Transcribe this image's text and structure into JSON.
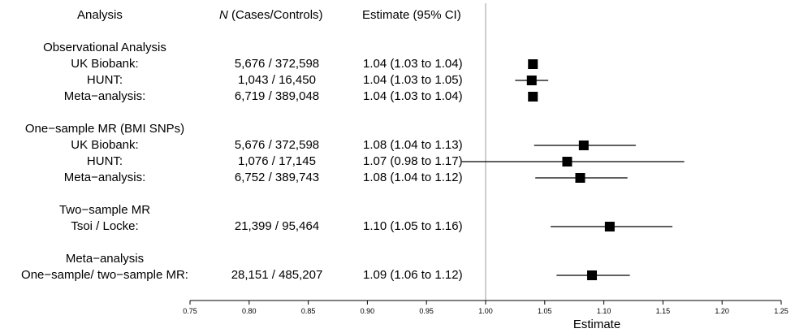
{
  "headers": {
    "analysis": "Analysis",
    "n_italic": "N",
    "n_rest": " (Cases/Controls)",
    "estimate": "Estimate (95% CI)"
  },
  "rows": [
    {
      "kind": "group",
      "label": "Observational Analysis"
    },
    {
      "kind": "item",
      "label": "UK Biobank:",
      "n": "5,676 / 372,598",
      "ci": "1.04 (1.03 to 1.04)"
    },
    {
      "kind": "item",
      "label": "HUNT:",
      "n": "1,043 / 16,450",
      "ci": "1.04 (1.03 to 1.05)"
    },
    {
      "kind": "item",
      "label": "Meta−analysis:",
      "n": "6,719 / 389,048",
      "ci": "1.04 (1.03 to 1.04)"
    },
    {
      "kind": "group",
      "label": "One−sample MR (BMI SNPs)"
    },
    {
      "kind": "item",
      "label": "UK Biobank:",
      "n": "5,676 / 372,598",
      "ci": "1.08 (1.04 to 1.13)"
    },
    {
      "kind": "item",
      "label": "HUNT:",
      "n": "1,076 / 17,145",
      "ci": "1.07 (0.98 to 1.17)"
    },
    {
      "kind": "item",
      "label": "Meta−analysis:",
      "n": "6,752 / 389,743",
      "ci": "1.08 (1.04 to 1.12)"
    },
    {
      "kind": "group",
      "label": "Two−sample MR"
    },
    {
      "kind": "item",
      "label": "Tsoi / Locke:",
      "n": "21,399 / 95,464",
      "ci": "1.10 (1.05 to 1.16)"
    },
    {
      "kind": "group",
      "label": "Meta−analysis"
    },
    {
      "kind": "item",
      "label": "One−sample/ two−sample MR:",
      "n": "28,151 / 485,207",
      "ci": "1.09 (1.06 to 1.12)"
    }
  ],
  "chart_data": {
    "type": "forest",
    "xlabel": "Estimate",
    "xlim": [
      0.75,
      1.25
    ],
    "xticks": [
      "0.75",
      "0.80",
      "0.85",
      "0.90",
      "0.95",
      "1.00",
      "1.05",
      "1.10",
      "1.15",
      "1.20",
      "1.25"
    ],
    "reference_line": 1.0,
    "points": [
      {
        "group": "Observational Analysis",
        "label": "UK Biobank",
        "estimate": 1.04,
        "lower": 1.038,
        "upper": 1.043
      },
      {
        "group": "Observational Analysis",
        "label": "HUNT",
        "estimate": 1.039,
        "lower": 1.025,
        "upper": 1.053
      },
      {
        "group": "Observational Analysis",
        "label": "Meta-analysis",
        "estimate": 1.04,
        "lower": 1.038,
        "upper": 1.043
      },
      {
        "group": "One-sample MR (BMI SNPs)",
        "label": "UK Biobank",
        "estimate": 1.083,
        "lower": 1.041,
        "upper": 1.127
      },
      {
        "group": "One-sample MR (BMI SNPs)",
        "label": "HUNT",
        "estimate": 1.069,
        "lower": 0.98,
        "upper": 1.168
      },
      {
        "group": "One-sample MR (BMI SNPs)",
        "label": "Meta-analysis",
        "estimate": 1.08,
        "lower": 1.042,
        "upper": 1.12
      },
      {
        "group": "Two-sample MR",
        "label": "Tsoi / Locke",
        "estimate": 1.105,
        "lower": 1.055,
        "upper": 1.158
      },
      {
        "group": "Meta-analysis",
        "label": "One-sample/ two-sample MR",
        "estimate": 1.09,
        "lower": 1.06,
        "upper": 1.122
      }
    ],
    "colors": {
      "marker": "#000000",
      "reference": "#bdbdbd",
      "axis": "#000000"
    }
  }
}
